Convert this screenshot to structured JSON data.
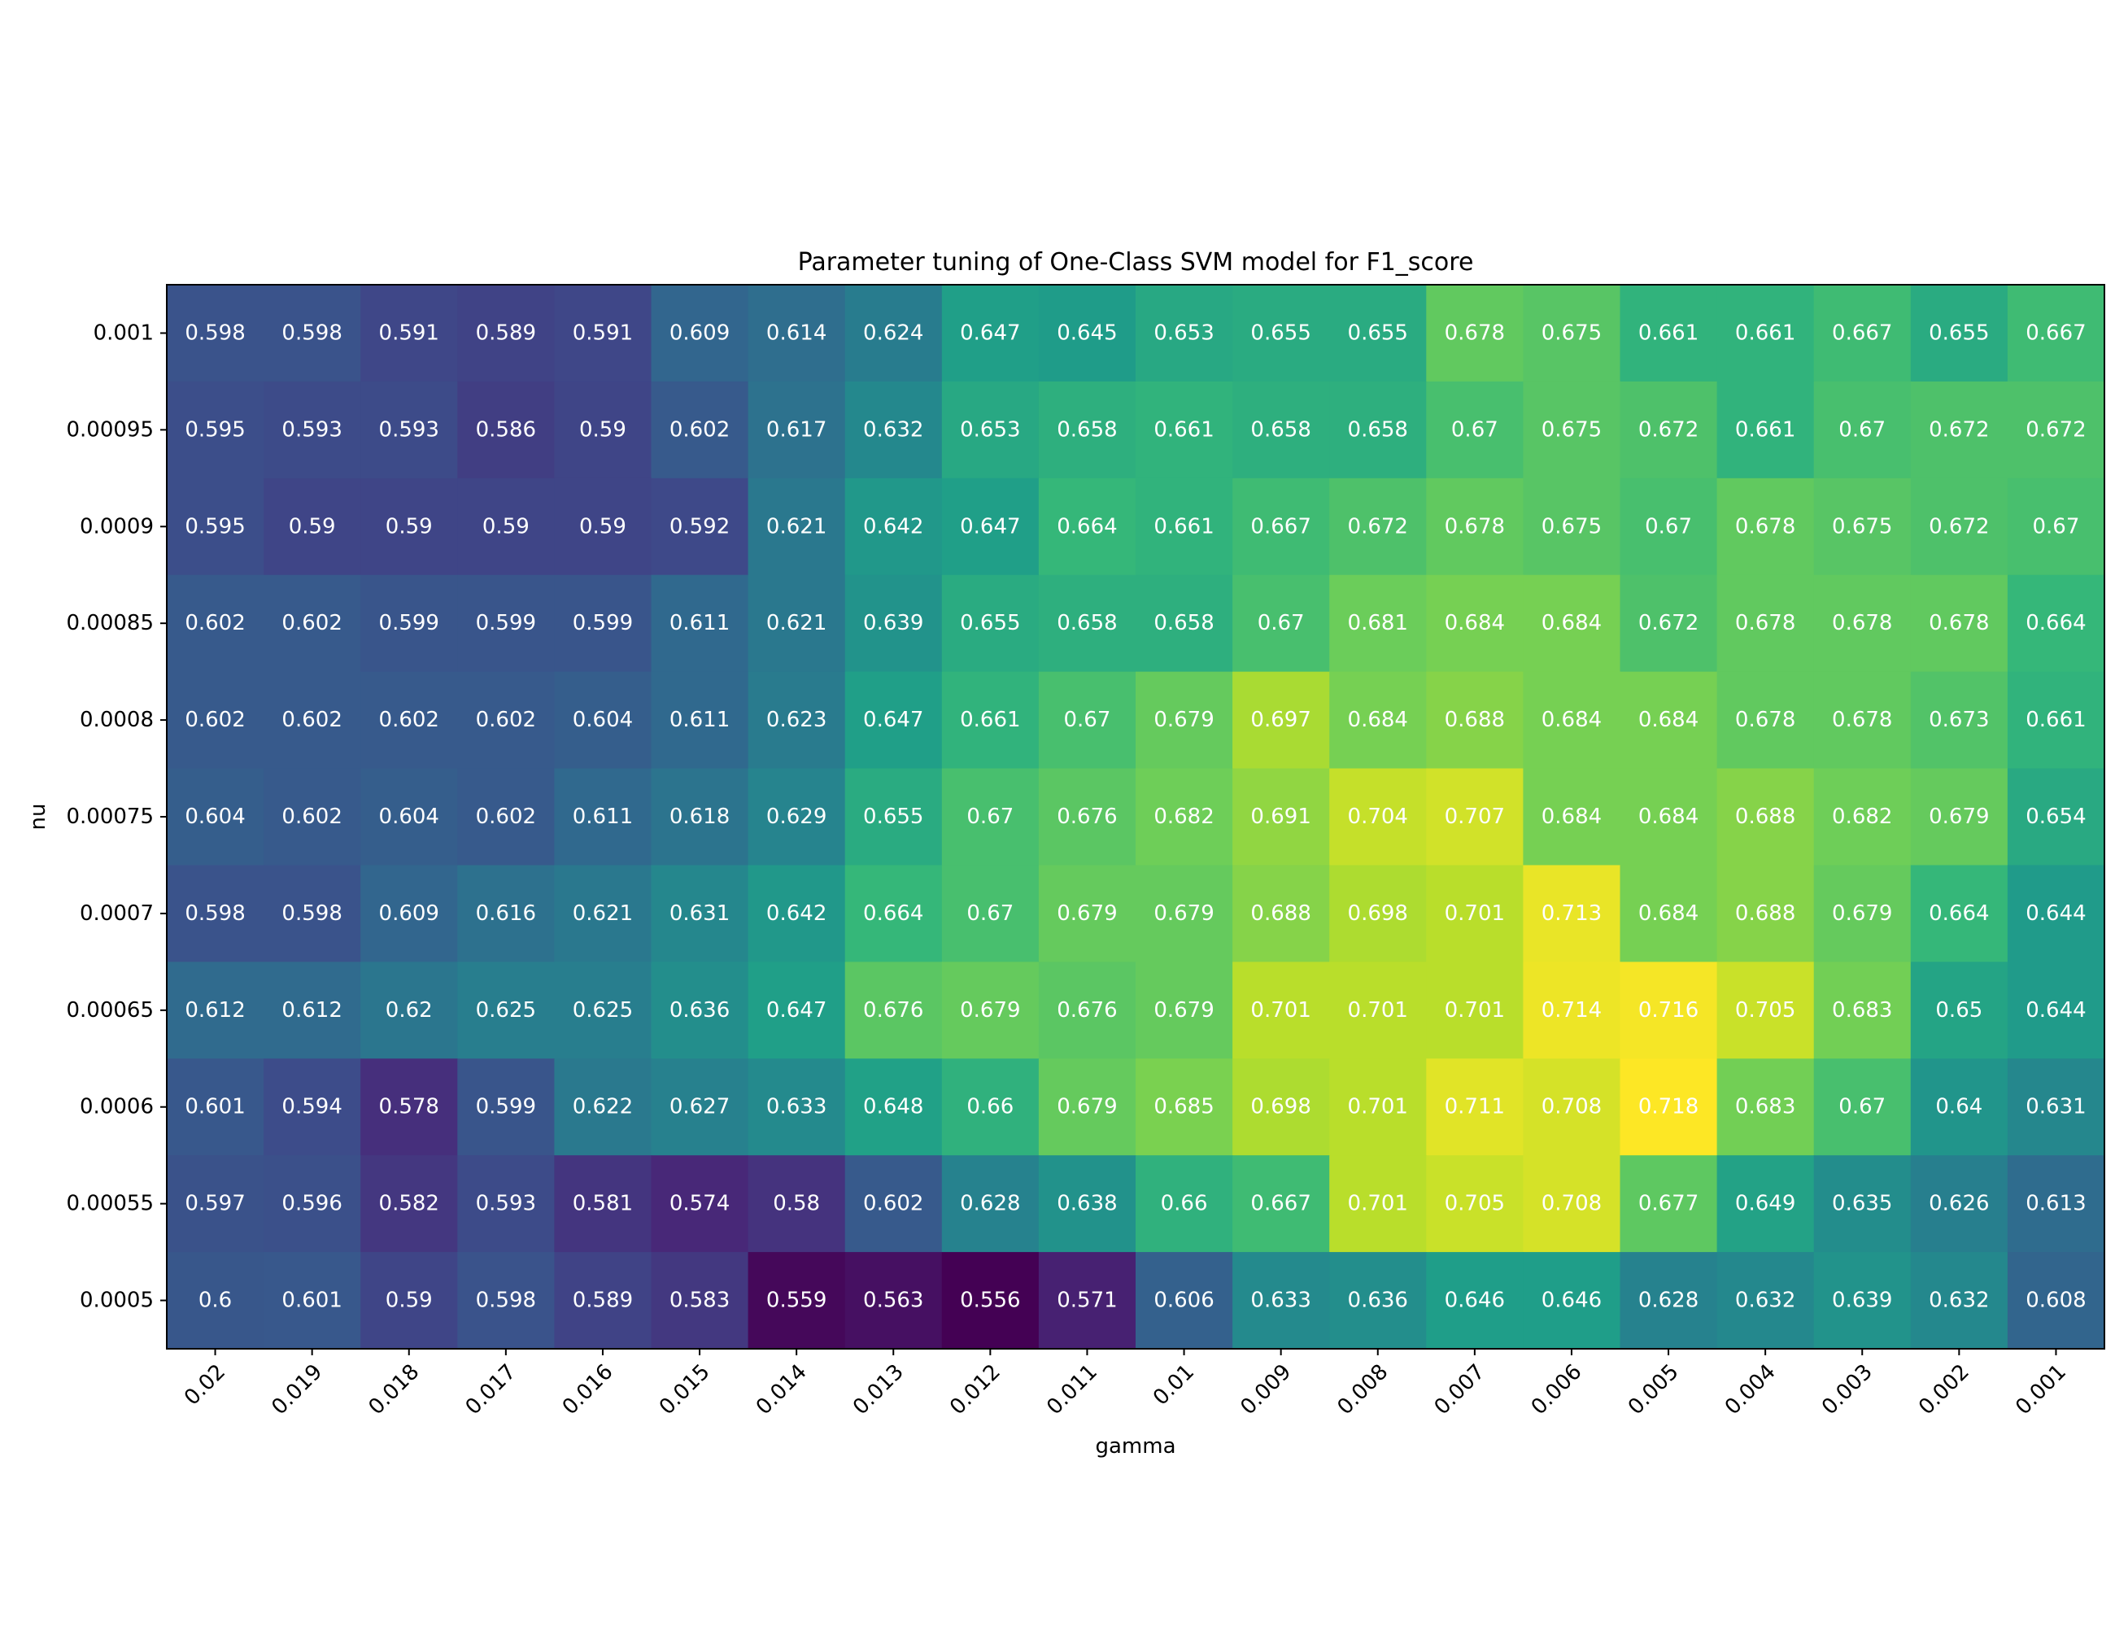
{
  "chart_data": {
    "type": "heatmap",
    "title": "Parameter tuning of One-Class SVM model for F1_score",
    "xlabel": "gamma",
    "ylabel": "nu",
    "x": [
      "0.02",
      "0.019",
      "0.018",
      "0.017",
      "0.016",
      "0.015",
      "0.014",
      "0.013",
      "0.012",
      "0.011",
      "0.01",
      "0.009",
      "0.008",
      "0.007",
      "0.006",
      "0.005",
      "0.004",
      "0.003",
      "0.002",
      "0.001"
    ],
    "y": [
      "0.001",
      "0.00095",
      "0.0009",
      "0.00085",
      "0.0008",
      "0.00075",
      "0.0007",
      "0.00065",
      "0.0006",
      "0.00055",
      "0.0005"
    ],
    "values": [
      [
        0.598,
        0.598,
        0.591,
        0.589,
        0.591,
        0.609,
        0.614,
        0.624,
        0.647,
        0.645,
        0.653,
        0.655,
        0.655,
        0.678,
        0.675,
        0.661,
        0.661,
        0.667,
        0.655,
        0.667
      ],
      [
        0.595,
        0.593,
        0.593,
        0.586,
        0.59,
        0.602,
        0.617,
        0.632,
        0.653,
        0.658,
        0.661,
        0.658,
        0.658,
        0.67,
        0.675,
        0.672,
        0.661,
        0.67,
        0.672,
        0.672
      ],
      [
        0.595,
        0.59,
        0.59,
        0.59,
        0.59,
        0.592,
        0.621,
        0.642,
        0.647,
        0.664,
        0.661,
        0.667,
        0.672,
        0.678,
        0.675,
        0.67,
        0.678,
        0.675,
        0.672,
        0.67
      ],
      [
        0.602,
        0.602,
        0.599,
        0.599,
        0.599,
        0.611,
        0.621,
        0.639,
        0.655,
        0.658,
        0.658,
        0.67,
        0.681,
        0.684,
        0.684,
        0.672,
        0.678,
        0.678,
        0.678,
        0.664
      ],
      [
        0.602,
        0.602,
        0.602,
        0.602,
        0.604,
        0.611,
        0.623,
        0.647,
        0.661,
        0.67,
        0.679,
        0.697,
        0.684,
        0.688,
        0.684,
        0.684,
        0.678,
        0.678,
        0.673,
        0.661
      ],
      [
        0.604,
        0.602,
        0.604,
        0.602,
        0.611,
        0.618,
        0.629,
        0.655,
        0.67,
        0.676,
        0.682,
        0.691,
        0.704,
        0.707,
        0.684,
        0.684,
        0.688,
        0.682,
        0.679,
        0.654
      ],
      [
        0.598,
        0.598,
        0.609,
        0.616,
        0.621,
        0.631,
        0.642,
        0.664,
        0.67,
        0.679,
        0.679,
        0.688,
        0.698,
        0.701,
        0.713,
        0.684,
        0.688,
        0.679,
        0.664,
        0.644
      ],
      [
        0.612,
        0.612,
        0.62,
        0.625,
        0.625,
        0.636,
        0.647,
        0.676,
        0.679,
        0.676,
        0.679,
        0.701,
        0.701,
        0.701,
        0.714,
        0.716,
        0.705,
        0.683,
        0.65,
        0.644
      ],
      [
        0.601,
        0.594,
        0.578,
        0.599,
        0.622,
        0.627,
        0.633,
        0.648,
        0.66,
        0.679,
        0.685,
        0.698,
        0.701,
        0.711,
        0.708,
        0.718,
        0.683,
        0.67,
        0.64,
        0.631
      ],
      [
        0.597,
        0.596,
        0.582,
        0.593,
        0.581,
        0.574,
        0.58,
        0.602,
        0.628,
        0.638,
        0.66,
        0.667,
        0.701,
        0.705,
        0.708,
        0.677,
        0.649,
        0.635,
        0.626,
        0.613
      ],
      [
        0.6,
        0.601,
        0.59,
        0.598,
        0.589,
        0.583,
        0.559,
        0.563,
        0.556,
        0.571,
        0.606,
        0.633,
        0.636,
        0.646,
        0.646,
        0.628,
        0.632,
        0.639,
        0.632,
        0.608
      ]
    ],
    "colormap": "viridis",
    "vmin": 0.556,
    "vmax": 0.718,
    "grid": false,
    "legend": "none",
    "colors": {
      "cell_text": "#ffffff",
      "frame": "#000000",
      "viridis_stops": [
        "#440154",
        "#482878",
        "#3e4989",
        "#31688e",
        "#26828e",
        "#1f9e89",
        "#35b779",
        "#6ece58",
        "#b5de2b",
        "#fde725"
      ]
    }
  }
}
